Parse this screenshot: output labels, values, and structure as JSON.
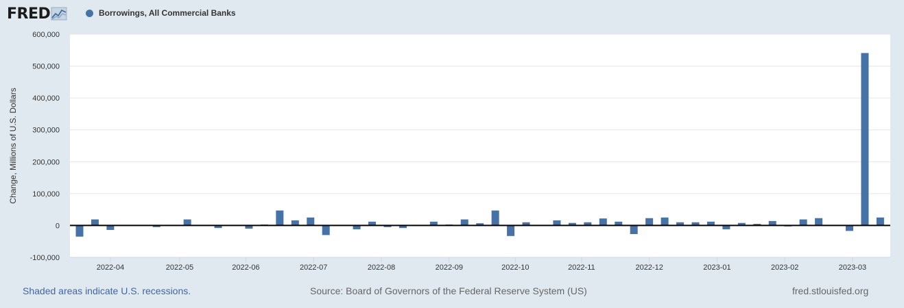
{
  "header": {
    "logo_text": "FRED",
    "series_title": "Borrowings, All Commercial Banks"
  },
  "footer": {
    "recession_note": "Shaded areas indicate U.S. recessions.",
    "source": "Source: Board of Governors of the Federal Reserve System (US)",
    "site": "fred.stlouisfed.org"
  },
  "colors": {
    "bar": "#4572a7",
    "plot_bg": "#ffffff",
    "page_bg": "#e1e9f0",
    "grid": "#e6e6e6",
    "zero_line": "#000000"
  },
  "chart_data": {
    "type": "bar",
    "title": "Borrowings, All Commercial Banks",
    "xlabel": "",
    "ylabel": "Change, Millions of U.S. Dollars",
    "ylim": [
      -100000,
      600000
    ],
    "grid": true,
    "yticks": [
      -100000,
      0,
      100000,
      200000,
      300000,
      400000,
      500000,
      600000
    ],
    "ytick_labels": [
      "-100,000",
      "0",
      "100,000",
      "200,000",
      "300,000",
      "400,000",
      "500,000",
      "600,000"
    ],
    "xtick_labels": [
      "2022-04",
      "2022-05",
      "2022-06",
      "2022-07",
      "2022-08",
      "2022-09",
      "2022-10",
      "2022-11",
      "2022-12",
      "2023-01",
      "2023-02",
      "2023-03"
    ],
    "xtick_weeks": [
      2,
      6.5,
      10.8,
      15.2,
      19.6,
      24,
      28.3,
      32.6,
      37,
      41.4,
      45.8,
      50.2
    ],
    "week_count": 53,
    "series": [
      {
        "name": "Borrowings, All Commercial Banks",
        "values": [
          -35000,
          19000,
          -14000,
          0,
          0,
          -5000,
          0,
          19000,
          0,
          -8000,
          0,
          -10000,
          3000,
          47000,
          16000,
          25000,
          -30000,
          0,
          -12000,
          12000,
          -5000,
          -8000,
          2000,
          12000,
          3000,
          19000,
          7000,
          47000,
          -33000,
          10000,
          0,
          16000,
          8000,
          10000,
          22000,
          12000,
          -27000,
          23000,
          25000,
          10000,
          10000,
          12000,
          -12000,
          8000,
          5000,
          14000,
          -3000,
          19000,
          23000,
          0,
          -17000,
          541000,
          25000
        ]
      }
    ]
  }
}
